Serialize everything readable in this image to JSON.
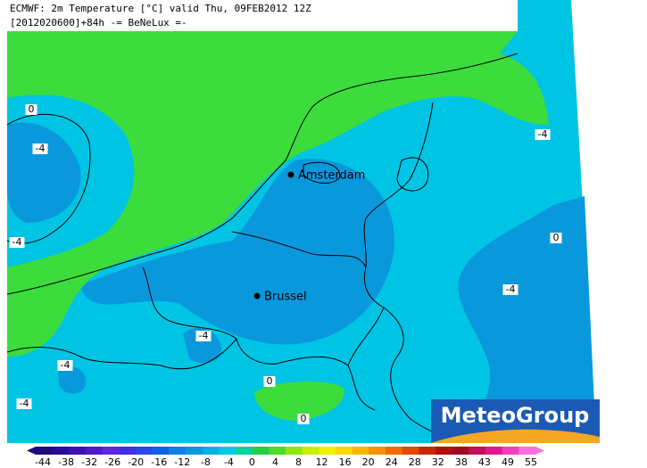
{
  "header": {
    "line1": "ECMWF: 2m Temperature [°C] valid Thu, 09FEB2012 12Z",
    "line2": "[2012020600]+84h  -= BeNeLux =-"
  },
  "cities": [
    "Amsterdam",
    "Brussel"
  ],
  "contour_labels": [
    "0",
    "-4",
    "-4",
    "0",
    "-4",
    "-4",
    "-4",
    "-4",
    "-4",
    "0",
    "0"
  ],
  "colorbar": {
    "ticks": [
      -44,
      -38,
      -32,
      -26,
      -20,
      -16,
      -12,
      -8,
      -4,
      0,
      4,
      8,
      12,
      16,
      20,
      24,
      28,
      32,
      38,
      43,
      49,
      55
    ],
    "colors": [
      "#1e0a78",
      "#2a0a9a",
      "#3c10b4",
      "#5018c8",
      "#6028dc",
      "#4030e0",
      "#2848e6",
      "#1060e8",
      "#1080e6",
      "#0a96dc",
      "#00b0e4",
      "#00c8e6",
      "#00d2a0",
      "#20d040",
      "#50dc28",
      "#90e614",
      "#c8ee00",
      "#f0f000",
      "#f8d800",
      "#f8b400",
      "#f89000",
      "#f06c00",
      "#e04800",
      "#c82800",
      "#b01010",
      "#a00a20",
      "#c01060",
      "#e01890",
      "#f040c0",
      "#f870e0"
    ]
  },
  "logo": "MeteoGroup"
}
